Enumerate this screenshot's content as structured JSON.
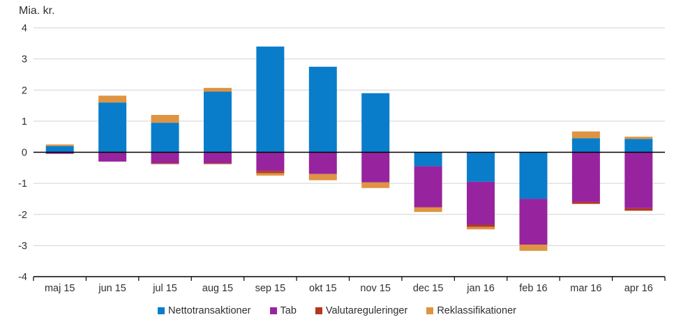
{
  "chart_data": {
    "type": "bar",
    "stacked": true,
    "title": "Mia. kr.",
    "categories": [
      "maj 15",
      "jun 15",
      "jul 15",
      "aug 15",
      "sep 15",
      "okt 15",
      "nov 15",
      "dec 15",
      "jan 16",
      "feb 16",
      "mar 16",
      "apr 16"
    ],
    "series": [
      {
        "name": "Nettotransaktioner",
        "color": "#0a7dca",
        "values": [
          0.2,
          1.6,
          0.95,
          1.95,
          3.4,
          2.75,
          1.9,
          -0.45,
          -0.95,
          -1.5,
          0.45,
          0.43
        ]
      },
      {
        "name": "Tab",
        "color": "#97249e",
        "values": [
          -0.05,
          -0.3,
          -0.35,
          -0.35,
          -0.6,
          -0.7,
          -0.97,
          -1.32,
          -1.38,
          -1.47,
          -1.6,
          -1.8
        ]
      },
      {
        "name": "Valutareguleringer",
        "color": "#b2381f",
        "values": [
          0,
          0,
          -0.03,
          -0.03,
          -0.07,
          0,
          0,
          0,
          -0.07,
          0,
          -0.06,
          -0.08
        ]
      },
      {
        "name": "Reklassifikationer",
        "color": "#de9442",
        "values": [
          0.05,
          0.22,
          0.25,
          0.12,
          -0.08,
          -0.2,
          -0.18,
          -0.15,
          -0.08,
          -0.2,
          0.22,
          0.07
        ]
      }
    ],
    "ylim": [
      -4,
      4
    ],
    "ytick_step": 1,
    "yticks": [
      "4",
      "3",
      "2",
      "1",
      "0",
      "-1",
      "-2",
      "-3",
      "-4"
    ],
    "grid": true,
    "legend_position": "bottom",
    "grid_color": "#d2d2d2",
    "axis_color": "#000000",
    "text_color": "#303030"
  }
}
